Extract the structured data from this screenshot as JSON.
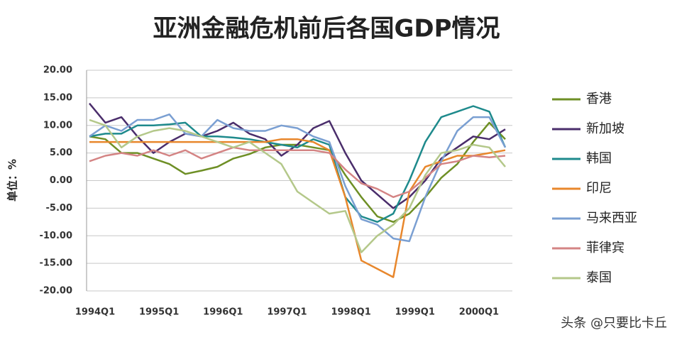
{
  "chart_data": {
    "type": "line",
    "title": "亚洲金融危机前后各国GDP情况",
    "y_label": "单位：%",
    "watermark": "头条 @只要比卡丘",
    "categories": [
      "1994Q1",
      null,
      null,
      null,
      "1995Q1",
      null,
      null,
      null,
      "1996Q1",
      null,
      null,
      null,
      "1997Q1",
      null,
      null,
      null,
      "1998Q1",
      null,
      null,
      null,
      "1999Q1",
      null,
      null,
      null,
      "2000Q1",
      null,
      null
    ],
    "series": [
      {
        "name": "香港",
        "color": "#6e8f25",
        "values": [
          8,
          7.5,
          5,
          5,
          4,
          3,
          1.2,
          1.8,
          2.5,
          4,
          4.8,
          6,
          6.5,
          6.5,
          6,
          5.5,
          1,
          -3,
          -6.5,
          -7.5,
          -6,
          -3,
          0.5,
          3,
          7,
          10.5,
          7.5
        ]
      },
      {
        "name": "新加坡",
        "color": "#4a2d6b",
        "values": [
          14,
          10.5,
          11.5,
          8,
          5,
          7,
          8.5,
          8,
          9,
          10.5,
          8.5,
          7.5,
          4.5,
          6.5,
          9.5,
          10.8,
          5,
          0,
          -2.5,
          -5,
          -3,
          0,
          4,
          6,
          8,
          7.5,
          9.3
        ]
      },
      {
        "name": "韩国",
        "color": "#1e8a8c",
        "values": [
          8,
          8.5,
          8.5,
          10,
          10,
          10.2,
          10.5,
          8,
          8,
          7.8,
          7.5,
          7,
          6.5,
          6,
          7.5,
          6.5,
          -3,
          -6.5,
          -7.5,
          -6,
          0,
          7,
          11.5,
          12.5,
          13.5,
          12.5,
          6
        ]
      },
      {
        "name": "印尼",
        "color": "#e8872c",
        "values": [
          7,
          7,
          7,
          7,
          7,
          7,
          7,
          7,
          7,
          7,
          7,
          7,
          7.5,
          7.5,
          7,
          5.5,
          -3,
          -14.5,
          -16,
          -17.5,
          -2,
          2.5,
          3.5,
          4.5,
          4.5,
          5,
          5.5
        ]
      },
      {
        "name": "马来西亚",
        "color": "#7a9fd2",
        "values": [
          8,
          10,
          9,
          11,
          11,
          12,
          8.5,
          8,
          11,
          9.5,
          9,
          9,
          10,
          9.5,
          8,
          7,
          -1,
          -7,
          -8,
          -10.5,
          -11,
          -3,
          3.5,
          9,
          11.5,
          11.5,
          6
        ]
      },
      {
        "name": "菲律宾",
        "color": "#d48484",
        "values": [
          3.5,
          4.5,
          5,
          4.5,
          5.5,
          4.5,
          5.5,
          4,
          5,
          6,
          5.5,
          5.5,
          5.5,
          5.5,
          5.5,
          5,
          2,
          -0.5,
          -1.5,
          -3,
          -2,
          0.5,
          3,
          3.5,
          4.5,
          4.2,
          4.5
        ]
      },
      {
        "name": "泰国",
        "color": "#b4c88a",
        "values": [
          11,
          10,
          6,
          8,
          9,
          9.5,
          9,
          8,
          7,
          6,
          7,
          5,
          3,
          -2,
          -4,
          -6,
          -5.5,
          -13,
          -10,
          -8,
          -5,
          1,
          5,
          5.5,
          6.5,
          6,
          2.5
        ]
      }
    ],
    "ylim": [
      -20,
      20
    ],
    "yticks": [
      {
        "value": -20,
        "label": "-20.00"
      },
      {
        "value": -15,
        "label": "-15.00"
      },
      {
        "value": -10,
        "label": "-10.00"
      },
      {
        "value": -5,
        "label": "-5.00"
      },
      {
        "value": 0,
        "label": "0.00"
      },
      {
        "value": 5,
        "label": "5.00"
      },
      {
        "value": 10,
        "label": "10.00"
      },
      {
        "value": 15,
        "label": "15.00"
      },
      {
        "value": 20,
        "label": "20.00"
      }
    ],
    "grid": true
  }
}
